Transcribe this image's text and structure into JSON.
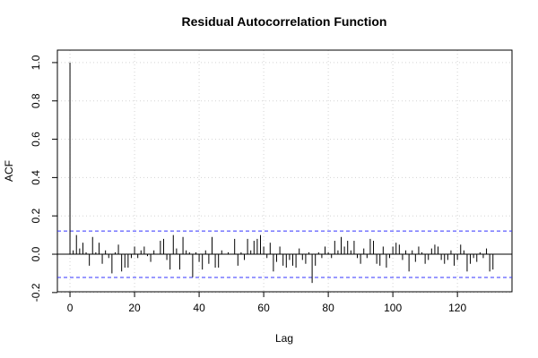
{
  "chart_data": {
    "type": "acf",
    "title": "Residual Autocorrelation Function",
    "x_label": "Lag",
    "y_label": "ACF",
    "x": [
      0,
      1,
      2,
      3,
      4,
      5,
      6,
      7,
      8,
      9,
      10,
      11,
      12,
      13,
      14,
      15,
      16,
      17,
      18,
      19,
      20,
      21,
      22,
      23,
      24,
      25,
      26,
      27,
      28,
      29,
      30,
      31,
      32,
      33,
      34,
      35,
      36,
      37,
      38,
      39,
      40,
      41,
      42,
      43,
      44,
      45,
      46,
      47,
      48,
      49,
      50,
      51,
      52,
      53,
      54,
      55,
      56,
      57,
      58,
      59,
      60,
      61,
      62,
      63,
      64,
      65,
      66,
      67,
      68,
      69,
      70,
      71,
      72,
      73,
      74,
      75,
      76,
      77,
      78,
      79,
      80,
      81,
      82,
      83,
      84,
      85,
      86,
      87,
      88,
      89,
      90,
      91,
      92,
      93,
      94,
      95,
      96,
      97,
      98,
      99,
      100,
      101,
      102,
      103,
      104,
      105,
      106,
      107,
      108,
      109,
      110,
      111,
      112,
      113,
      114,
      115,
      116,
      117,
      118,
      119,
      120,
      121,
      122,
      123,
      124,
      125,
      126,
      127,
      128,
      129,
      130,
      131
    ],
    "values": [
      1.0,
      0.02,
      0.1,
      0.03,
      0.06,
      0.01,
      -0.06,
      0.09,
      0.01,
      0.06,
      -0.05,
      0.02,
      -0.02,
      -0.1,
      0.01,
      0.05,
      -0.09,
      -0.07,
      -0.07,
      -0.02,
      0.04,
      -0.02,
      0.02,
      0.04,
      -0.01,
      -0.04,
      0.02,
      0.0,
      0.07,
      0.08,
      -0.03,
      -0.08,
      0.1,
      0.03,
      -0.08,
      0.09,
      0.02,
      0.01,
      -0.12,
      0.01,
      -0.04,
      -0.08,
      0.02,
      -0.05,
      0.09,
      -0.07,
      -0.07,
      0.02,
      0.0,
      0.01,
      0.0,
      0.08,
      -0.06,
      0.01,
      -0.03,
      0.08,
      0.02,
      0.07,
      0.08,
      0.1,
      0.04,
      -0.02,
      0.06,
      -0.09,
      -0.04,
      0.04,
      -0.06,
      -0.07,
      -0.03,
      -0.06,
      -0.07,
      0.03,
      -0.03,
      -0.05,
      0.01,
      -0.15,
      -0.06,
      0.01,
      -0.02,
      0.04,
      0.01,
      -0.02,
      0.07,
      0.02,
      0.09,
      0.04,
      0.07,
      0.02,
      0.07,
      -0.02,
      -0.05,
      0.03,
      -0.02,
      0.08,
      0.07,
      -0.05,
      -0.06,
      0.04,
      -0.07,
      -0.02,
      0.04,
      0.06,
      0.05,
      -0.03,
      0.02,
      -0.09,
      0.02,
      -0.04,
      0.04,
      0.01,
      -0.05,
      -0.03,
      0.03,
      0.05,
      0.04,
      -0.03,
      -0.05,
      -0.03,
      0.02,
      -0.06,
      -0.03,
      0.05,
      0.02,
      -0.09,
      -0.05,
      -0.02,
      -0.04,
      0.01,
      -0.02,
      0.03,
      -0.09,
      -0.08
    ],
    "color": "#000000",
    "conf_bounds": [
      0.121,
      -0.121
    ],
    "conf_color": "#3333ff",
    "xlim": [
      -3.9,
      136.9
    ],
    "ylim": [
      -0.196,
      1.065
    ],
    "xticks": [
      0,
      20,
      40,
      60,
      80,
      100,
      120
    ],
    "yticks": [
      -0.2,
      {
        "value": 0,
        "label": "0.0"
      },
      0.2,
      0.4,
      0.6,
      0.8,
      {
        "value": 1,
        "label": "1.0"
      }
    ],
    "grid": true
  }
}
